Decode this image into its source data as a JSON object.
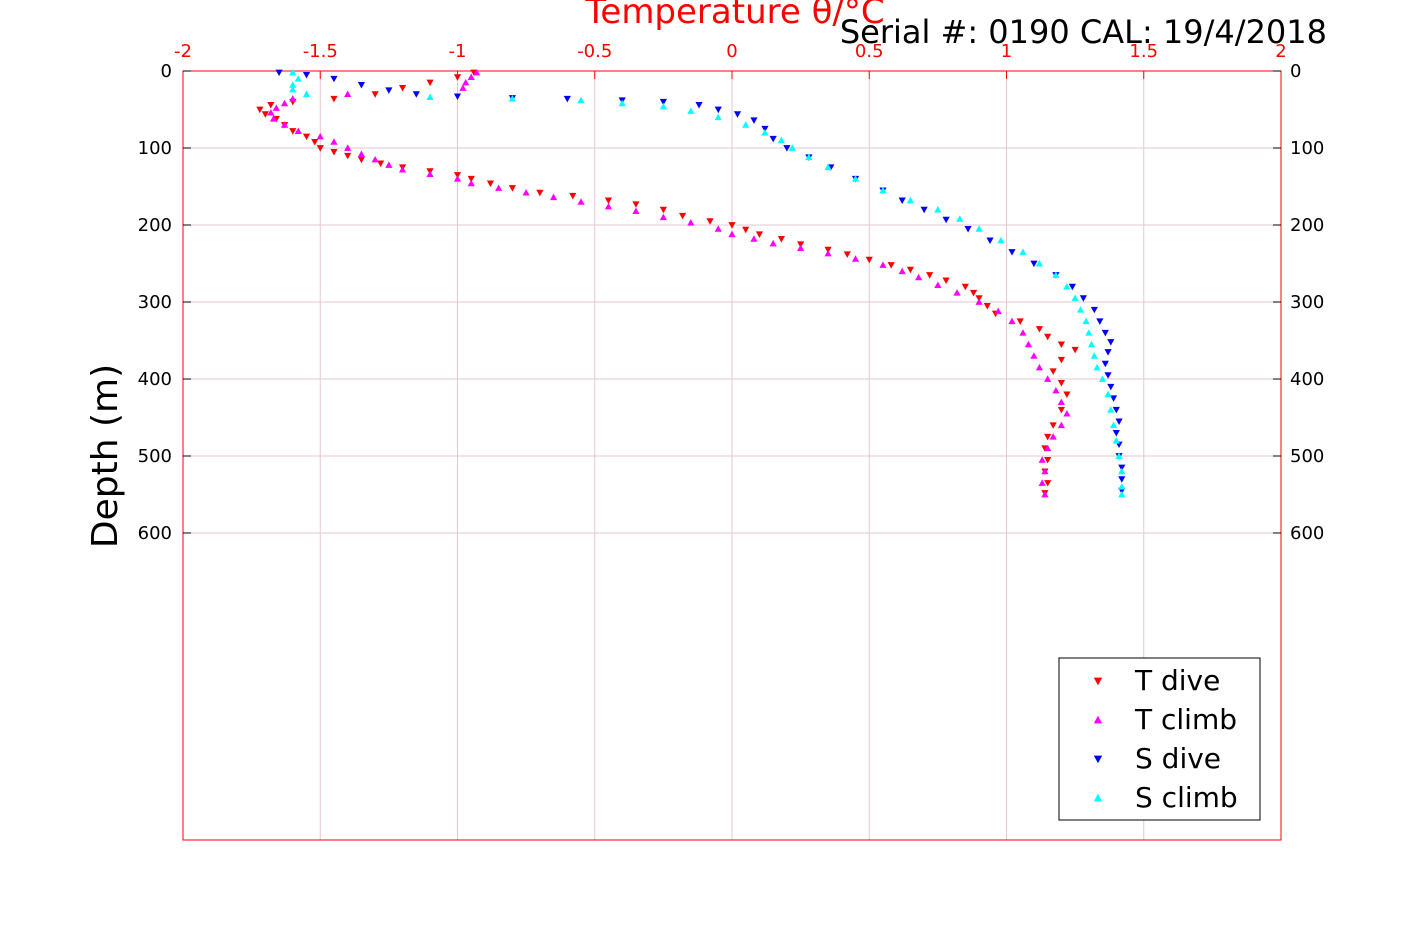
{
  "header": {
    "serial_text": "Serial #: 0190  CAL: 19/4/2018"
  },
  "chart_data": {
    "type": "scatter",
    "title": "Temperature θ/°C",
    "xlabel": "Temperature θ/°C",
    "ylabel": "Depth (m)",
    "xlim": [
      -2,
      2
    ],
    "ylim": [
      0,
      1000
    ],
    "y_reversed": true,
    "x_axis_position": "top",
    "x_ticks": [
      "-2",
      "-1.5",
      "-1",
      "-0.5",
      "0",
      "0.5",
      "1",
      "1.5",
      "2"
    ],
    "y_ticks": [
      "0",
      "100",
      "200",
      "300",
      "400",
      "500",
      "600"
    ],
    "grid": true,
    "legend_position": "bottom-right",
    "colors": {
      "axis_x": "#ff0000",
      "grid": "#e6c7d0"
    },
    "series": [
      {
        "name": "T dive",
        "marker": "triangle-down",
        "color": "#ff0000",
        "points": [
          [
            -0.94,
            2
          ],
          [
            -1.0,
            8
          ],
          [
            -1.1,
            15
          ],
          [
            -1.2,
            22
          ],
          [
            -1.3,
            30
          ],
          [
            -1.45,
            36
          ],
          [
            -1.6,
            40
          ],
          [
            -1.68,
            44
          ],
          [
            -1.72,
            50
          ],
          [
            -1.7,
            56
          ],
          [
            -1.66,
            62
          ],
          [
            -1.63,
            70
          ],
          [
            -1.6,
            78
          ],
          [
            -1.55,
            85
          ],
          [
            -1.52,
            92
          ],
          [
            -1.5,
            100
          ],
          [
            -1.45,
            105
          ],
          [
            -1.4,
            110
          ],
          [
            -1.35,
            115
          ],
          [
            -1.28,
            120
          ],
          [
            -1.2,
            125
          ],
          [
            -1.1,
            130
          ],
          [
            -1.0,
            135
          ],
          [
            -0.95,
            140
          ],
          [
            -0.88,
            146
          ],
          [
            -0.8,
            152
          ],
          [
            -0.7,
            158
          ],
          [
            -0.58,
            162
          ],
          [
            -0.45,
            168
          ],
          [
            -0.35,
            173
          ],
          [
            -0.25,
            180
          ],
          [
            -0.18,
            188
          ],
          [
            -0.08,
            195
          ],
          [
            0.0,
            200
          ],
          [
            0.05,
            206
          ],
          [
            0.1,
            212
          ],
          [
            0.18,
            218
          ],
          [
            0.25,
            225
          ],
          [
            0.35,
            232
          ],
          [
            0.42,
            238
          ],
          [
            0.5,
            245
          ],
          [
            0.58,
            252
          ],
          [
            0.65,
            258
          ],
          [
            0.72,
            265
          ],
          [
            0.78,
            272
          ],
          [
            0.85,
            280
          ],
          [
            0.88,
            288
          ],
          [
            0.9,
            295
          ],
          [
            0.93,
            305
          ],
          [
            0.96,
            315
          ],
          [
            1.05,
            325
          ],
          [
            1.12,
            335
          ],
          [
            1.15,
            345
          ],
          [
            1.2,
            355
          ],
          [
            1.25,
            362
          ],
          [
            1.2,
            375
          ],
          [
            1.17,
            390
          ],
          [
            1.2,
            405
          ],
          [
            1.22,
            420
          ],
          [
            1.2,
            440
          ],
          [
            1.17,
            460
          ],
          [
            1.15,
            475
          ],
          [
            1.14,
            490
          ],
          [
            1.15,
            505
          ],
          [
            1.14,
            520
          ],
          [
            1.15,
            535
          ],
          [
            1.14,
            548
          ]
        ]
      },
      {
        "name": "T climb",
        "marker": "triangle-up",
        "color": "#ff00ff",
        "points": [
          [
            -0.93,
            2
          ],
          [
            -0.95,
            8
          ],
          [
            -0.97,
            15
          ],
          [
            -0.98,
            22
          ],
          [
            -1.4,
            30
          ],
          [
            -1.6,
            36
          ],
          [
            -1.63,
            42
          ],
          [
            -1.66,
            48
          ],
          [
            -1.68,
            54
          ],
          [
            -1.67,
            62
          ],
          [
            -1.63,
            70
          ],
          [
            -1.58,
            78
          ],
          [
            -1.5,
            85
          ],
          [
            -1.45,
            92
          ],
          [
            -1.4,
            100
          ],
          [
            -1.35,
            108
          ],
          [
            -1.3,
            115
          ],
          [
            -1.25,
            122
          ],
          [
            -1.2,
            128
          ],
          [
            -1.1,
            134
          ],
          [
            -1.0,
            140
          ],
          [
            -0.95,
            146
          ],
          [
            -0.85,
            152
          ],
          [
            -0.75,
            158
          ],
          [
            -0.65,
            164
          ],
          [
            -0.55,
            170
          ],
          [
            -0.45,
            176
          ],
          [
            -0.35,
            182
          ],
          [
            -0.25,
            190
          ],
          [
            -0.15,
            197
          ],
          [
            -0.05,
            205
          ],
          [
            0.0,
            212
          ],
          [
            0.08,
            218
          ],
          [
            0.15,
            224
          ],
          [
            0.25,
            230
          ],
          [
            0.35,
            237
          ],
          [
            0.45,
            244
          ],
          [
            0.55,
            252
          ],
          [
            0.62,
            260
          ],
          [
            0.68,
            268
          ],
          [
            0.75,
            278
          ],
          [
            0.82,
            288
          ],
          [
            0.9,
            300
          ],
          [
            0.97,
            312
          ],
          [
            1.02,
            325
          ],
          [
            1.06,
            340
          ],
          [
            1.08,
            355
          ],
          [
            1.1,
            370
          ],
          [
            1.12,
            385
          ],
          [
            1.15,
            400
          ],
          [
            1.18,
            415
          ],
          [
            1.2,
            430
          ],
          [
            1.22,
            445
          ],
          [
            1.2,
            460
          ],
          [
            1.17,
            475
          ],
          [
            1.15,
            490
          ],
          [
            1.13,
            505
          ],
          [
            1.14,
            520
          ],
          [
            1.13,
            535
          ],
          [
            1.14,
            550
          ]
        ]
      },
      {
        "name": "S dive",
        "marker": "triangle-down",
        "color": "#0000ff",
        "points": [
          [
            -1.65,
            2
          ],
          [
            -1.55,
            5
          ],
          [
            -1.45,
            10
          ],
          [
            -1.35,
            18
          ],
          [
            -1.25,
            25
          ],
          [
            -1.15,
            30
          ],
          [
            -1.0,
            33
          ],
          [
            -0.8,
            35
          ],
          [
            -0.6,
            36
          ],
          [
            -0.4,
            38
          ],
          [
            -0.25,
            40
          ],
          [
            -0.12,
            44
          ],
          [
            -0.05,
            50
          ],
          [
            0.02,
            56
          ],
          [
            0.08,
            64
          ],
          [
            0.12,
            75
          ],
          [
            0.15,
            88
          ],
          [
            0.2,
            100
          ],
          [
            0.28,
            112
          ],
          [
            0.36,
            125
          ],
          [
            0.45,
            140
          ],
          [
            0.55,
            155
          ],
          [
            0.62,
            168
          ],
          [
            0.7,
            180
          ],
          [
            0.78,
            193
          ],
          [
            0.86,
            205
          ],
          [
            0.94,
            220
          ],
          [
            1.02,
            235
          ],
          [
            1.1,
            250
          ],
          [
            1.18,
            265
          ],
          [
            1.24,
            280
          ],
          [
            1.28,
            295
          ],
          [
            1.32,
            310
          ],
          [
            1.34,
            325
          ],
          [
            1.36,
            340
          ],
          [
            1.38,
            352
          ],
          [
            1.37,
            365
          ],
          [
            1.36,
            380
          ],
          [
            1.37,
            395
          ],
          [
            1.38,
            410
          ],
          [
            1.39,
            425
          ],
          [
            1.4,
            440
          ],
          [
            1.41,
            455
          ],
          [
            1.4,
            470
          ],
          [
            1.41,
            485
          ],
          [
            1.41,
            500
          ],
          [
            1.42,
            515
          ],
          [
            1.42,
            530
          ],
          [
            1.42,
            545
          ]
        ]
      },
      {
        "name": "S climb",
        "marker": "triangle-up",
        "color": "#00ffff",
        "points": [
          [
            -1.6,
            2
          ],
          [
            -1.58,
            10
          ],
          [
            -1.6,
            18
          ],
          [
            -1.6,
            24
          ],
          [
            -1.55,
            30
          ],
          [
            -1.1,
            34
          ],
          [
            -0.8,
            36
          ],
          [
            -0.55,
            38
          ],
          [
            -0.4,
            42
          ],
          [
            -0.25,
            46
          ],
          [
            -0.15,
            52
          ],
          [
            -0.05,
            60
          ],
          [
            0.05,
            70
          ],
          [
            0.12,
            80
          ],
          [
            0.18,
            90
          ],
          [
            0.22,
            100
          ],
          [
            0.28,
            112
          ],
          [
            0.35,
            125
          ],
          [
            0.45,
            140
          ],
          [
            0.55,
            155
          ],
          [
            0.65,
            168
          ],
          [
            0.75,
            180
          ],
          [
            0.83,
            192
          ],
          [
            0.9,
            205
          ],
          [
            0.98,
            220
          ],
          [
            1.06,
            235
          ],
          [
            1.12,
            250
          ],
          [
            1.18,
            265
          ],
          [
            1.22,
            280
          ],
          [
            1.25,
            295
          ],
          [
            1.27,
            310
          ],
          [
            1.29,
            325
          ],
          [
            1.3,
            340
          ],
          [
            1.31,
            355
          ],
          [
            1.32,
            370
          ],
          [
            1.33,
            385
          ],
          [
            1.35,
            400
          ],
          [
            1.37,
            420
          ],
          [
            1.38,
            440
          ],
          [
            1.39,
            460
          ],
          [
            1.4,
            480
          ],
          [
            1.41,
            500
          ],
          [
            1.42,
            520
          ],
          [
            1.42,
            540
          ],
          [
            1.42,
            550
          ]
        ]
      }
    ]
  }
}
